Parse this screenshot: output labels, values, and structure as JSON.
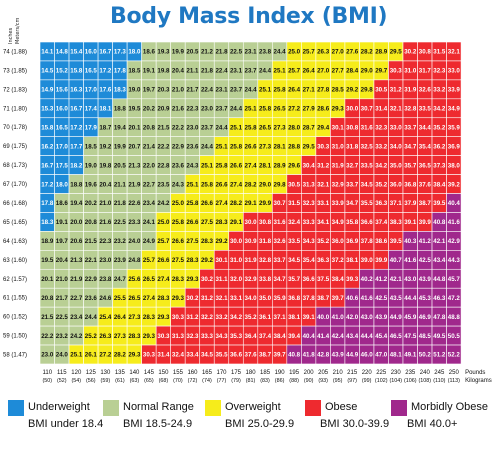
{
  "title": "Body Mass Index (BMI)",
  "axis": {
    "inches_label": "Inches",
    "meters_label": "Meters/cm",
    "pounds_label": "Pounds",
    "kilograms_label": "Kilograms"
  },
  "colors": {
    "underweight": "#1e8bd8",
    "normal": "#b9cf94",
    "overweight": "#f6ec1b",
    "obese": "#ee2a2f",
    "morbid": "#a0288c",
    "title": "#1f78c2"
  },
  "legend": [
    {
      "label": "Underweight",
      "sub": "BMI under 18.4",
      "color": "#1e8bd8"
    },
    {
      "label": "Normal Range",
      "sub": "BMI 18.5-24.9",
      "color": "#b9cf94"
    },
    {
      "label": "Overweight",
      "sub": "BMI 25.0-29.9",
      "color": "#f6ec1b"
    },
    {
      "label": "Obese",
      "sub": "BMI 30.0-39.9",
      "color": "#ee2a2f"
    },
    {
      "label": "Morbidly Obese",
      "sub": "BMI 40.0+",
      "color": "#a0288c"
    }
  ],
  "chart_data": {
    "type": "heatmap",
    "title": "Body Mass Index (BMI)",
    "xlabel": "Pounds / Kilograms",
    "ylabel": "Inches / Meters/cm",
    "x_pounds": [
      110,
      115,
      120,
      125,
      130,
      135,
      140,
      145,
      150,
      155,
      160,
      165,
      170,
      175,
      180,
      185,
      190,
      195,
      200,
      205,
      210,
      215,
      220,
      225,
      230,
      235,
      240,
      245,
      250
    ],
    "x_labels_lb": [
      "110",
      "115",
      "120",
      "125",
      "130",
      "135",
      "140",
      "145",
      "150",
      "155",
      "160",
      "165",
      "170",
      "175",
      "180",
      "185",
      "190",
      "195",
      "200",
      "205",
      "210",
      "215",
      "220",
      "225",
      "230",
      "235",
      "240",
      "245",
      "250"
    ],
    "x_labels_kg": [
      "(50)",
      "(52)",
      "(54)",
      "(56)",
      "(59)",
      "(61)",
      "(63)",
      "(65)",
      "(68)",
      "(70)",
      "(72)",
      "(74)",
      "(77)",
      "(79)",
      "(81)",
      "(83)",
      "(86)",
      "(88)",
      "(90)",
      "(93)",
      "(95)",
      "(97)",
      "(99)",
      "(102)",
      "(104)",
      "(106)",
      "(108)",
      "(110)",
      "(113)"
    ],
    "y_inches": [
      74,
      73,
      72,
      71,
      70,
      69,
      68,
      67,
      66,
      65,
      64,
      63,
      62,
      61,
      60,
      59,
      58
    ],
    "y_labels": [
      "74 (1.88)",
      "73 (1.85)",
      "72 (1.83)",
      "71 (1.80)",
      "70 (1.78)",
      "69 (1.75)",
      "68 (1.73)",
      "67 (1.70)",
      "66 (1.68)",
      "65 (1.65)",
      "64 (1.63)",
      "63 (1.60)",
      "62 (1.57)",
      "61 (1.55)",
      "60 (1.52)",
      "59 (1.50)",
      "58 (1.47)"
    ],
    "values": [
      [
        "14.1",
        "14.8",
        "15.4",
        "16.0",
        "16.7",
        "17.3",
        "18.0",
        "18.6",
        "19.3",
        "19.9",
        "20.5",
        "21.2",
        "21.8",
        "22.5",
        "23.1",
        "23.8",
        "24.4",
        "25.0",
        "25.7",
        "26.3",
        "27.0",
        "27.6",
        "28.2",
        "28.9",
        "29.5",
        "30.2",
        "30.8",
        "31.5",
        "32.1"
      ],
      [
        "14.5",
        "15.2",
        "15.8",
        "16.5",
        "17.2",
        "17.8",
        "18.5",
        "19.1",
        "19.8",
        "20.4",
        "21.1",
        "21.8",
        "22.4",
        "23.1",
        "23.7",
        "24.4",
        "25.1",
        "25.7",
        "26.4",
        "27.0",
        "27.7",
        "28.4",
        "29.0",
        "29.7",
        "30.3",
        "31.0",
        "31.7",
        "32.3",
        "33.0"
      ],
      [
        "14.9",
        "15.6",
        "16.3",
        "17.0",
        "17.6",
        "18.3",
        "19.0",
        "19.7",
        "20.3",
        "21.0",
        "21.7",
        "22.4",
        "23.1",
        "23.7",
        "24.4",
        "25.1",
        "25.8",
        "26.4",
        "27.1",
        "27.8",
        "28.5",
        "29.2",
        "29.8",
        "30.5",
        "31.2",
        "31.9",
        "32.6",
        "33.2",
        "33.9"
      ],
      [
        "15.3",
        "16.0",
        "16.7",
        "17.4",
        "18.1",
        "18.8",
        "19.5",
        "20.2",
        "20.9",
        "21.6",
        "22.3",
        "23.0",
        "23.7",
        "24.4",
        "25.1",
        "25.8",
        "26.5",
        "27.2",
        "27.9",
        "28.6",
        "29.3",
        "30.0",
        "30.7",
        "31.4",
        "32.1",
        "32.8",
        "33.5",
        "34.2",
        "34.9"
      ],
      [
        "15.8",
        "16.5",
        "17.2",
        "17.9",
        "18.7",
        "19.4",
        "20.1",
        "20.8",
        "21.5",
        "22.2",
        "23.0",
        "23.7",
        "24.4",
        "25.1",
        "25.8",
        "26.5",
        "27.3",
        "28.0",
        "28.7",
        "29.4",
        "30.1",
        "30.8",
        "31.6",
        "32.3",
        "33.0",
        "33.7",
        "34.4",
        "35.2",
        "35.9"
      ],
      [
        "16.2",
        "17.0",
        "17.7",
        "18.5",
        "19.2",
        "19.9",
        "20.7",
        "21.4",
        "22.2",
        "22.9",
        "23.6",
        "24.4",
        "25.1",
        "25.8",
        "26.6",
        "27.3",
        "28.1",
        "28.8",
        "29.5",
        "30.3",
        "31.0",
        "31.8",
        "32.5",
        "33.2",
        "34.0",
        "34.7",
        "35.4",
        "36.2",
        "36.9"
      ],
      [
        "16.7",
        "17.5",
        "18.2",
        "19.0",
        "19.8",
        "20.5",
        "21.3",
        "22.0",
        "22.8",
        "23.6",
        "24.3",
        "25.1",
        "25.8",
        "26.6",
        "27.4",
        "28.1",
        "28.9",
        "29.6",
        "30.4",
        "31.2",
        "31.9",
        "32.7",
        "33.5",
        "34.2",
        "35.0",
        "35.7",
        "36.5",
        "37.3",
        "38.0"
      ],
      [
        "17.2",
        "18.0",
        "18.8",
        "19.6",
        "20.4",
        "21.1",
        "21.9",
        "22.7",
        "23.5",
        "24.3",
        "25.1",
        "25.8",
        "26.6",
        "27.4",
        "28.2",
        "29.0",
        "29.8",
        "30.5",
        "31.3",
        "32.1",
        "32.9",
        "33.7",
        "34.5",
        "35.2",
        "36.0",
        "36.8",
        "37.6",
        "38.4",
        "39.2"
      ],
      [
        "17.8",
        "18.6",
        "19.4",
        "20.2",
        "21.0",
        "21.8",
        "22.6",
        "23.4",
        "24.2",
        "25.0",
        "25.8",
        "26.6",
        "27.4",
        "28.2",
        "29.1",
        "29.9",
        "30.7",
        "31.5",
        "32.3",
        "33.1",
        "33.9",
        "34.7",
        "35.5",
        "36.3",
        "37.1",
        "37.9",
        "38.7",
        "39.5",
        "40.4"
      ],
      [
        "18.3",
        "19.1",
        "20.0",
        "20.8",
        "21.6",
        "22.5",
        "23.3",
        "24.1",
        "25.0",
        "25.8",
        "26.6",
        "27.5",
        "28.3",
        "29.1",
        "30.0",
        "30.8",
        "31.6",
        "32.4",
        "33.3",
        "34.1",
        "34.9",
        "35.8",
        "36.6",
        "37.4",
        "38.3",
        "39.1",
        "39.9",
        "40.8",
        "41.6"
      ],
      [
        "18.9",
        "19.7",
        "20.6",
        "21.5",
        "22.3",
        "23.2",
        "24.0",
        "24.9",
        "25.7",
        "26.6",
        "27.5",
        "28.3",
        "29.2",
        "30.0",
        "30.9",
        "31.8",
        "32.6",
        "33.5",
        "34.3",
        "35.2",
        "36.0",
        "36.9",
        "37.8",
        "38.6",
        "39.5",
        "40.3",
        "41.2",
        "42.1",
        "42.9"
      ],
      [
        "19.5",
        "20.4",
        "21.3",
        "22.1",
        "23.0",
        "23.9",
        "24.8",
        "25.7",
        "26.6",
        "27.5",
        "28.3",
        "29.2",
        "30.1",
        "31.0",
        "31.9",
        "32.8",
        "33.7",
        "34.5",
        "35.4",
        "36.3",
        "37.2",
        "38.1",
        "39.0",
        "39.9",
        "40.7",
        "41.6",
        "42.5",
        "43.4",
        "44.3"
      ],
      [
        "20.1",
        "21.0",
        "21.9",
        "22.9",
        "23.8",
        "24.7",
        "25.6",
        "26.5",
        "27.4",
        "28.3",
        "29.3",
        "30.2",
        "31.1",
        "32.0",
        "32.9",
        "33.8",
        "34.7",
        "35.7",
        "36.6",
        "37.5",
        "38.4",
        "39.3",
        "40.2",
        "41.2",
        "42.1",
        "43.0",
        "43.9",
        "44.8",
        "45.7"
      ],
      [
        "20.8",
        "21.7",
        "22.7",
        "23.6",
        "24.6",
        "25.5",
        "26.5",
        "27.4",
        "28.3",
        "29.3",
        "30.2",
        "31.2",
        "32.1",
        "33.1",
        "34.0",
        "35.0",
        "35.9",
        "36.8",
        "37.8",
        "38.7",
        "39.7",
        "40.6",
        "41.6",
        "42.5",
        "43.5",
        "44.4",
        "45.3",
        "46.3",
        "47.2"
      ],
      [
        "21.5",
        "22.5",
        "23.4",
        "24.4",
        "25.4",
        "26.4",
        "27.3",
        "28.3",
        "29.3",
        "30.3",
        "31.2",
        "32.2",
        "33.2",
        "34.2",
        "35.2",
        "36.1",
        "37.1",
        "38.1",
        "39.1",
        "40.0",
        "41.0",
        "42.0",
        "43.0",
        "43.9",
        "44.9",
        "45.9",
        "46.9",
        "47.8",
        "48.8"
      ],
      [
        "22.2",
        "23.2",
        "24.2",
        "25.2",
        "26.3",
        "27.3",
        "28.3",
        "29.3",
        "30.3",
        "31.3",
        "32.3",
        "33.3",
        "34.3",
        "35.3",
        "36.4",
        "37.4",
        "38.4",
        "39.4",
        "40.4",
        "41.4",
        "42.4",
        "43.4",
        "44.4",
        "45.4",
        "46.5",
        "47.5",
        "48.5",
        "49.5",
        "50.5"
      ],
      [
        "23.0",
        "24.0",
        "25.1",
        "26.1",
        "27.2",
        "28.2",
        "29.3",
        "30.3",
        "31.4",
        "32.4",
        "33.4",
        "34.5",
        "35.5",
        "36.6",
        "37.6",
        "38.7",
        "39.7",
        "40.8",
        "41.8",
        "42.8",
        "43.9",
        "44.9",
        "46.0",
        "47.0",
        "48.1",
        "49.1",
        "50.2",
        "51.2",
        "52.2"
      ]
    ]
  }
}
